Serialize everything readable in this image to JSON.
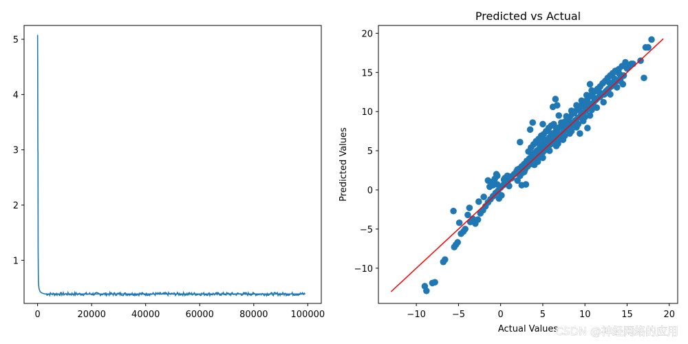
{
  "chart_data": [
    {
      "type": "line",
      "title": "",
      "xlabel": "",
      "ylabel": "",
      "xlim": [
        -5000,
        105000
      ],
      "ylim": [
        0.22,
        5.25
      ],
      "xticks": [
        0,
        20000,
        40000,
        60000,
        80000,
        100000
      ],
      "xtick_labels": [
        "0",
        "20000",
        "40000",
        "60000",
        "80000",
        "100000"
      ],
      "yticks": [
        1,
        2,
        3,
        4,
        5
      ],
      "ytick_labels": [
        "1",
        "2",
        "3",
        "4",
        "5"
      ],
      "color": "#1f77b4",
      "series": [
        {
          "x": [
            0,
            50,
            100,
            150,
            200,
            300,
            400,
            500,
            700,
            1000,
            1500,
            2000,
            3000,
            4000,
            6000,
            10000,
            20000,
            30000,
            40000,
            50000,
            60000,
            70000,
            80000,
            90000,
            99000
          ],
          "y": [
            5.08,
            4.5,
            3.0,
            2.95,
            1.2,
            0.62,
            0.55,
            0.5,
            0.46,
            0.43,
            0.41,
            0.4,
            0.39,
            0.39,
            0.39,
            0.39,
            0.39,
            0.39,
            0.39,
            0.39,
            0.39,
            0.39,
            0.39,
            0.39,
            0.39
          ],
          "noise_band": [
            0.36,
            0.42
          ]
        }
      ],
      "grid": false
    },
    {
      "type": "scatter",
      "title": "Predicted vs Actual",
      "xlabel": "Actual Values",
      "ylabel": "Predicted Values",
      "xlim": [
        -14.5,
        21
      ],
      "ylim": [
        -14.5,
        21
      ],
      "xticks": [
        -10,
        -5,
        0,
        5,
        10,
        15,
        20
      ],
      "xtick_labels": [
        "−10",
        "−5",
        "0",
        "5",
        "10",
        "15",
        "20"
      ],
      "yticks": [
        -10,
        -5,
        0,
        5,
        10,
        15,
        20
      ],
      "ytick_labels": [
        "−10",
        "−5",
        "0",
        "5",
        "10",
        "15",
        "20"
      ],
      "point_color": "#1f77b4",
      "line_color": "#ff0000",
      "reference_line": {
        "x": [
          -13,
          19.3
        ],
        "y": [
          -13,
          19.3
        ]
      },
      "points": [
        [
          -9,
          -12.3
        ],
        [
          -8.8,
          -12.9
        ],
        [
          -8.1,
          -11.9
        ],
        [
          -7.8,
          -11.8
        ],
        [
          -6.8,
          -9.2
        ],
        [
          -6.6,
          -8.9
        ],
        [
          -5.5,
          -7.3
        ],
        [
          -5.3,
          -7.0
        ],
        [
          -5.1,
          -6.7
        ],
        [
          -5.6,
          -2.7
        ],
        [
          -4.9,
          -4.2
        ],
        [
          -4.7,
          -5.6
        ],
        [
          -4.4,
          -5.3
        ],
        [
          -4.2,
          -5.0
        ],
        [
          -3.9,
          -3.2
        ],
        [
          -3.6,
          -4.1
        ],
        [
          -3.7,
          -2.3
        ],
        [
          -3.3,
          -3.7
        ],
        [
          -3.0,
          -4.3
        ],
        [
          -2.7,
          -3.8
        ],
        [
          -2.4,
          -3.0
        ],
        [
          -2.1,
          -2.6
        ],
        [
          -1.8,
          -2.1
        ],
        [
          -1.5,
          -1.6
        ],
        [
          -1.2,
          -1.2
        ],
        [
          -0.9,
          -0.8
        ],
        [
          -0.6,
          -0.4
        ],
        [
          -0.3,
          -0.1
        ],
        [
          0.0,
          0.3
        ],
        [
          0.3,
          0.6
        ],
        [
          0.6,
          0.9
        ],
        [
          0.9,
          1.2
        ],
        [
          -0.2,
          -1.1
        ],
        [
          0.1,
          -0.7
        ],
        [
          -1.3,
          0.4
        ],
        [
          -1.0,
          1.0
        ],
        [
          -0.7,
          1.4
        ],
        [
          -0.4,
          1.8
        ],
        [
          -0.5,
          2.0
        ],
        [
          -0.9,
          0.6
        ],
        [
          -1.5,
          1.2
        ],
        [
          -2.0,
          -0.9
        ],
        [
          -2.6,
          -1.5
        ],
        [
          -1.1,
          0.6
        ],
        [
          0.5,
          1.5
        ],
        [
          0.8,
          1.8
        ],
        [
          1.1,
          1.7
        ],
        [
          1.3,
          1.5
        ],
        [
          1.6,
          2.0
        ],
        [
          1.9,
          2.4
        ],
        [
          2.2,
          2.7
        ],
        [
          2.5,
          3.0
        ],
        [
          2.8,
          3.3
        ],
        [
          3.1,
          3.7
        ],
        [
          3.4,
          4.0
        ],
        [
          3.7,
          4.4
        ],
        [
          4.0,
          4.7
        ],
        [
          4.3,
          5.0
        ],
        [
          4.6,
          5.3
        ],
        [
          4.9,
          5.7
        ],
        [
          5.2,
          6.0
        ],
        [
          5.5,
          6.3
        ],
        [
          5.8,
          6.7
        ],
        [
          6.1,
          7.0
        ],
        [
          6.4,
          7.3
        ],
        [
          6.7,
          7.7
        ],
        [
          7.0,
          8.0
        ],
        [
          7.3,
          8.3
        ],
        [
          7.6,
          8.7
        ],
        [
          7.9,
          9.0
        ],
        [
          8.2,
          9.3
        ],
        [
          8.5,
          9.7
        ],
        [
          8.8,
          10.0
        ],
        [
          9.1,
          10.3
        ],
        [
          9.4,
          10.6
        ],
        [
          9.7,
          11.0
        ],
        [
          10.0,
          11.3
        ],
        [
          10.3,
          11.6
        ],
        [
          10.6,
          12.0
        ],
        [
          10.9,
          12.3
        ],
        [
          11.2,
          12.6
        ],
        [
          11.5,
          12.9
        ],
        [
          11.8,
          13.2
        ],
        [
          12.1,
          13.6
        ],
        [
          12.4,
          13.9
        ],
        [
          12.7,
          14.3
        ],
        [
          13.0,
          14.6
        ],
        [
          13.3,
          14.9
        ],
        [
          13.6,
          15.2
        ],
        [
          14.0,
          15.4
        ],
        [
          14.4,
          15.8
        ],
        [
          14.8,
          16.3
        ],
        [
          15.2,
          15.8
        ],
        [
          15.5,
          16.1
        ],
        [
          2.0,
          1.2
        ],
        [
          2.3,
          1.8
        ],
        [
          2.6,
          2.2
        ],
        [
          2.9,
          2.6
        ],
        [
          3.2,
          3.0
        ],
        [
          3.5,
          3.3
        ],
        [
          3.8,
          3.5
        ],
        [
          4.1,
          3.9
        ],
        [
          4.4,
          4.2
        ],
        [
          4.7,
          4.5
        ],
        [
          5.0,
          4.8
        ],
        [
          5.3,
          5.1
        ],
        [
          5.6,
          5.4
        ],
        [
          5.9,
          5.8
        ],
        [
          6.2,
          6.1
        ],
        [
          6.5,
          6.4
        ],
        [
          6.8,
          6.8
        ],
        [
          7.1,
          7.1
        ],
        [
          7.4,
          7.3
        ],
        [
          7.7,
          7.7
        ],
        [
          8.0,
          8.0
        ],
        [
          8.3,
          8.3
        ],
        [
          8.6,
          8.6
        ],
        [
          8.9,
          8.9
        ],
        [
          9.2,
          9.2
        ],
        [
          9.5,
          9.5
        ],
        [
          9.8,
          9.8
        ],
        [
          10.1,
          10.1
        ],
        [
          10.4,
          10.4
        ],
        [
          10.7,
          10.8
        ],
        [
          11.0,
          11.1
        ],
        [
          11.3,
          11.5
        ],
        [
          11.6,
          11.8
        ],
        [
          11.9,
          12.1
        ],
        [
          12.2,
          12.3
        ],
        [
          12.5,
          12.6
        ],
        [
          12.8,
          12.9
        ],
        [
          13.1,
          13.2
        ],
        [
          13.4,
          13.6
        ],
        [
          13.7,
          13.9
        ],
        [
          14.2,
          14.2
        ],
        [
          14.6,
          14.6
        ],
        [
          3.3,
          4.9
        ],
        [
          3.6,
          5.4
        ],
        [
          3.9,
          5.8
        ],
        [
          4.2,
          6.2
        ],
        [
          4.5,
          6.5
        ],
        [
          4.8,
          6.9
        ],
        [
          5.1,
          7.1
        ],
        [
          5.4,
          7.5
        ],
        [
          5.7,
          7.9
        ],
        [
          6.0,
          8.2
        ],
        [
          6.3,
          8.4
        ],
        [
          4.6,
          5.9
        ],
        [
          5.2,
          6.4
        ],
        [
          6.0,
          7.2
        ],
        [
          6.6,
          7.9
        ],
        [
          7.2,
          8.6
        ],
        [
          7.8,
          9.4
        ],
        [
          8.4,
          10.1
        ],
        [
          9.0,
          10.8
        ],
        [
          9.6,
          11.4
        ],
        [
          10.2,
          12.1
        ],
        [
          10.8,
          12.7
        ],
        [
          5.0,
          4.1
        ],
        [
          5.8,
          5.0
        ],
        [
          6.6,
          5.6
        ],
        [
          7.4,
          6.4
        ],
        [
          8.2,
          7.2
        ],
        [
          9.0,
          8.0
        ],
        [
          9.8,
          8.8
        ],
        [
          10.6,
          9.5
        ],
        [
          11.4,
          10.5
        ],
        [
          12.2,
          11.2
        ],
        [
          13.0,
          12.2
        ],
        [
          13.8,
          13.1
        ],
        [
          4.0,
          3.2
        ],
        [
          4.4,
          3.6
        ],
        [
          6.8,
          5.9
        ],
        [
          7.6,
          6.9
        ],
        [
          8.4,
          7.5
        ],
        [
          9.2,
          8.4
        ],
        [
          10.0,
          9.3
        ],
        [
          10.8,
          10.2
        ],
        [
          2.3,
          6.1
        ],
        [
          3.5,
          7.7
        ],
        [
          3.8,
          8.6
        ],
        [
          5.0,
          8.4
        ],
        [
          6.2,
          10.6
        ],
        [
          6.5,
          11.6
        ],
        [
          6.7,
          10.8
        ],
        [
          6.9,
          9.5
        ],
        [
          8.3,
          8.1
        ],
        [
          9.4,
          7.2
        ],
        [
          10.3,
          7.9
        ],
        [
          10.0,
          10.9
        ],
        [
          10.6,
          13.5
        ],
        [
          11.8,
          11.9
        ],
        [
          12.6,
          12.7
        ],
        [
          13.2,
          14.7
        ],
        [
          13.6,
          15.1
        ],
        [
          14.2,
          13.9
        ],
        [
          14.5,
          13.5
        ],
        [
          15.0,
          15.5
        ],
        [
          15.7,
          16.1
        ],
        [
          16.6,
          16.5
        ],
        [
          17.2,
          18.2
        ],
        [
          17.0,
          14.3
        ],
        [
          17.5,
          18.2
        ],
        [
          17.9,
          19.2
        ],
        [
          3.0,
          0.7
        ],
        [
          2.5,
          0.6
        ],
        [
          -0.4,
          0.7
        ],
        [
          0.4,
          1.3
        ],
        [
          1.0,
          0.5
        ],
        [
          2.0,
          2.6
        ],
        [
          2.8,
          2.3
        ],
        [
          3.9,
          4.5
        ],
        [
          4.9,
          4.2
        ],
        [
          5.6,
          6.1
        ],
        [
          6.3,
          6.9
        ],
        [
          7.0,
          6.4
        ],
        [
          7.5,
          8.2
        ],
        [
          8.1,
          8.7
        ],
        [
          8.7,
          9.8
        ],
        [
          9.3,
          10.2
        ],
        [
          9.9,
          10.6
        ],
        [
          10.5,
          11.0
        ],
        [
          11.1,
          11.7
        ],
        [
          11.7,
          12.5
        ],
        [
          12.3,
          12.2
        ],
        [
          12.9,
          13.7
        ],
        [
          13.5,
          14.2
        ],
        [
          14.1,
          14.8
        ]
      ]
    }
  ],
  "watermark": "CSDN @神经网络的应用"
}
